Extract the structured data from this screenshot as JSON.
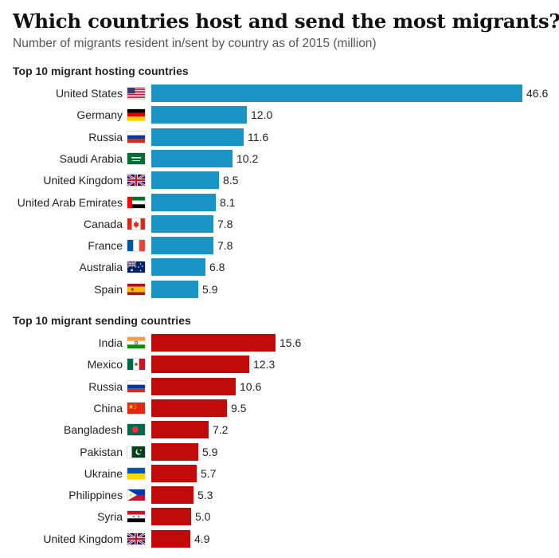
{
  "title": "Which countries host and send the most migrants?",
  "subtitle": "Number of migrants resident in/sent by country as of 2015 (million)",
  "colors": {
    "hosting": "#1a93c5",
    "sending": "#c00a0a"
  },
  "chart_data": [
    {
      "type": "bar",
      "orientation": "horizontal",
      "title": "Top 10 migrant hosting countries",
      "xlim": [
        0,
        46.6
      ],
      "categories": [
        "United States",
        "Germany",
        "Russia",
        "Saudi Arabia",
        "United Kingdom",
        "United Arab Emirates",
        "Canada",
        "France",
        "Australia",
        "Spain"
      ],
      "flags": [
        "us-flag-icon",
        "germany-flag-icon",
        "russia-flag-icon",
        "saudi-arabia-flag-icon",
        "uk-flag-icon",
        "uae-flag-icon",
        "canada-flag-icon",
        "france-flag-icon",
        "australia-flag-icon",
        "spain-flag-icon"
      ],
      "values": [
        46.6,
        12.0,
        11.6,
        10.2,
        8.5,
        8.1,
        7.8,
        7.8,
        6.8,
        5.9
      ],
      "labels": [
        "46.6",
        "12.0",
        "11.6",
        "10.2",
        "8.5",
        "8.1",
        "7.8",
        "7.8",
        "6.8",
        "5.9"
      ]
    },
    {
      "type": "bar",
      "orientation": "horizontal",
      "title": "Top 10 migrant sending countries",
      "xlim": [
        0,
        46.6
      ],
      "categories": [
        "India",
        "Mexico",
        "Russia",
        "China",
        "Bangladesh",
        "Pakistan",
        "Ukraine",
        "Philippines",
        "Syria",
        "United Kingdom"
      ],
      "flags": [
        "india-flag-icon",
        "mexico-flag-icon",
        "russia-flag-icon",
        "china-flag-icon",
        "bangladesh-flag-icon",
        "pakistan-flag-icon",
        "ukraine-flag-icon",
        "philippines-flag-icon",
        "syria-flag-icon",
        "uk-flag-icon"
      ],
      "values": [
        15.6,
        12.3,
        10.6,
        9.5,
        7.2,
        5.9,
        5.7,
        5.3,
        5.0,
        4.9
      ],
      "labels": [
        "15.6",
        "12.3",
        "10.6",
        "9.5",
        "7.2",
        "5.9",
        "5.7",
        "5.3",
        "5.0",
        "4.9"
      ]
    }
  ]
}
